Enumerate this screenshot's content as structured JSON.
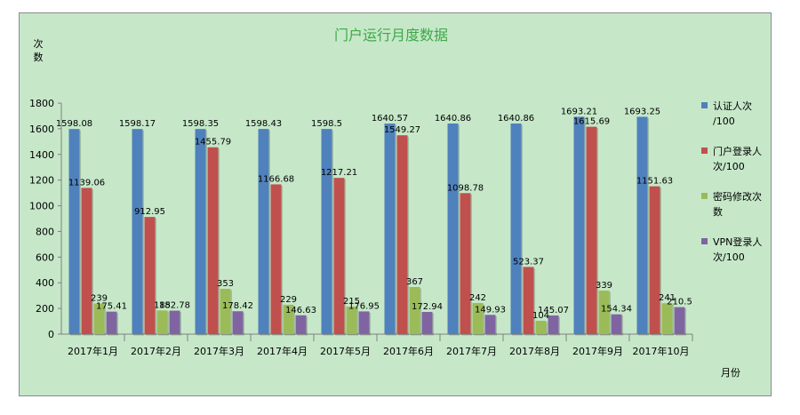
{
  "chart_data": {
    "type": "bar",
    "title": "门户运行月度数据",
    "ylabel": "次数",
    "xlabel": "月份",
    "ylim": [
      0,
      1800
    ],
    "yticks": [
      0,
      200,
      400,
      600,
      800,
      1000,
      1200,
      1400,
      1600,
      1800
    ],
    "grid": false,
    "legend_position": "right",
    "categories": [
      "2017年1月",
      "2017年2月",
      "2017年3月",
      "2017年4月",
      "2017年5月",
      "2017年6月",
      "2017年7月",
      "2017年8月",
      "2017年9月",
      "2017年10月"
    ],
    "series": [
      {
        "name": "认证人次/100",
        "legend_lines": [
          "认证人次",
          "/100"
        ],
        "color": "#4f81bd",
        "values": [
          1598.08,
          1598.17,
          1598.35,
          1598.43,
          1598.5,
          1640.57,
          1640.86,
          1640.86,
          1693.21,
          1693.25
        ]
      },
      {
        "name": "门户登录人次/100",
        "legend_lines": [
          "门户登录人",
          "次/100"
        ],
        "color": "#c0504d",
        "values": [
          1139.06,
          912.95,
          1455.79,
          1166.68,
          1217.21,
          1549.27,
          1098.78,
          523.37,
          1615.69,
          1151.63
        ]
      },
      {
        "name": "密码修改次数",
        "legend_lines": [
          "密码修改次",
          "数"
        ],
        "color": "#9bbb59",
        "values": [
          239,
          185,
          353,
          229,
          215,
          367,
          242,
          104,
          339,
          241
        ]
      },
      {
        "name": "VPN登录人次/100",
        "legend_lines": [
          "VPN登录人",
          "次/100"
        ],
        "color": "#8064a2",
        "values": [
          175.41,
          182.78,
          178.42,
          146.63,
          176.95,
          172.94,
          149.93,
          145.07,
          154.34,
          210.5
        ]
      }
    ]
  }
}
